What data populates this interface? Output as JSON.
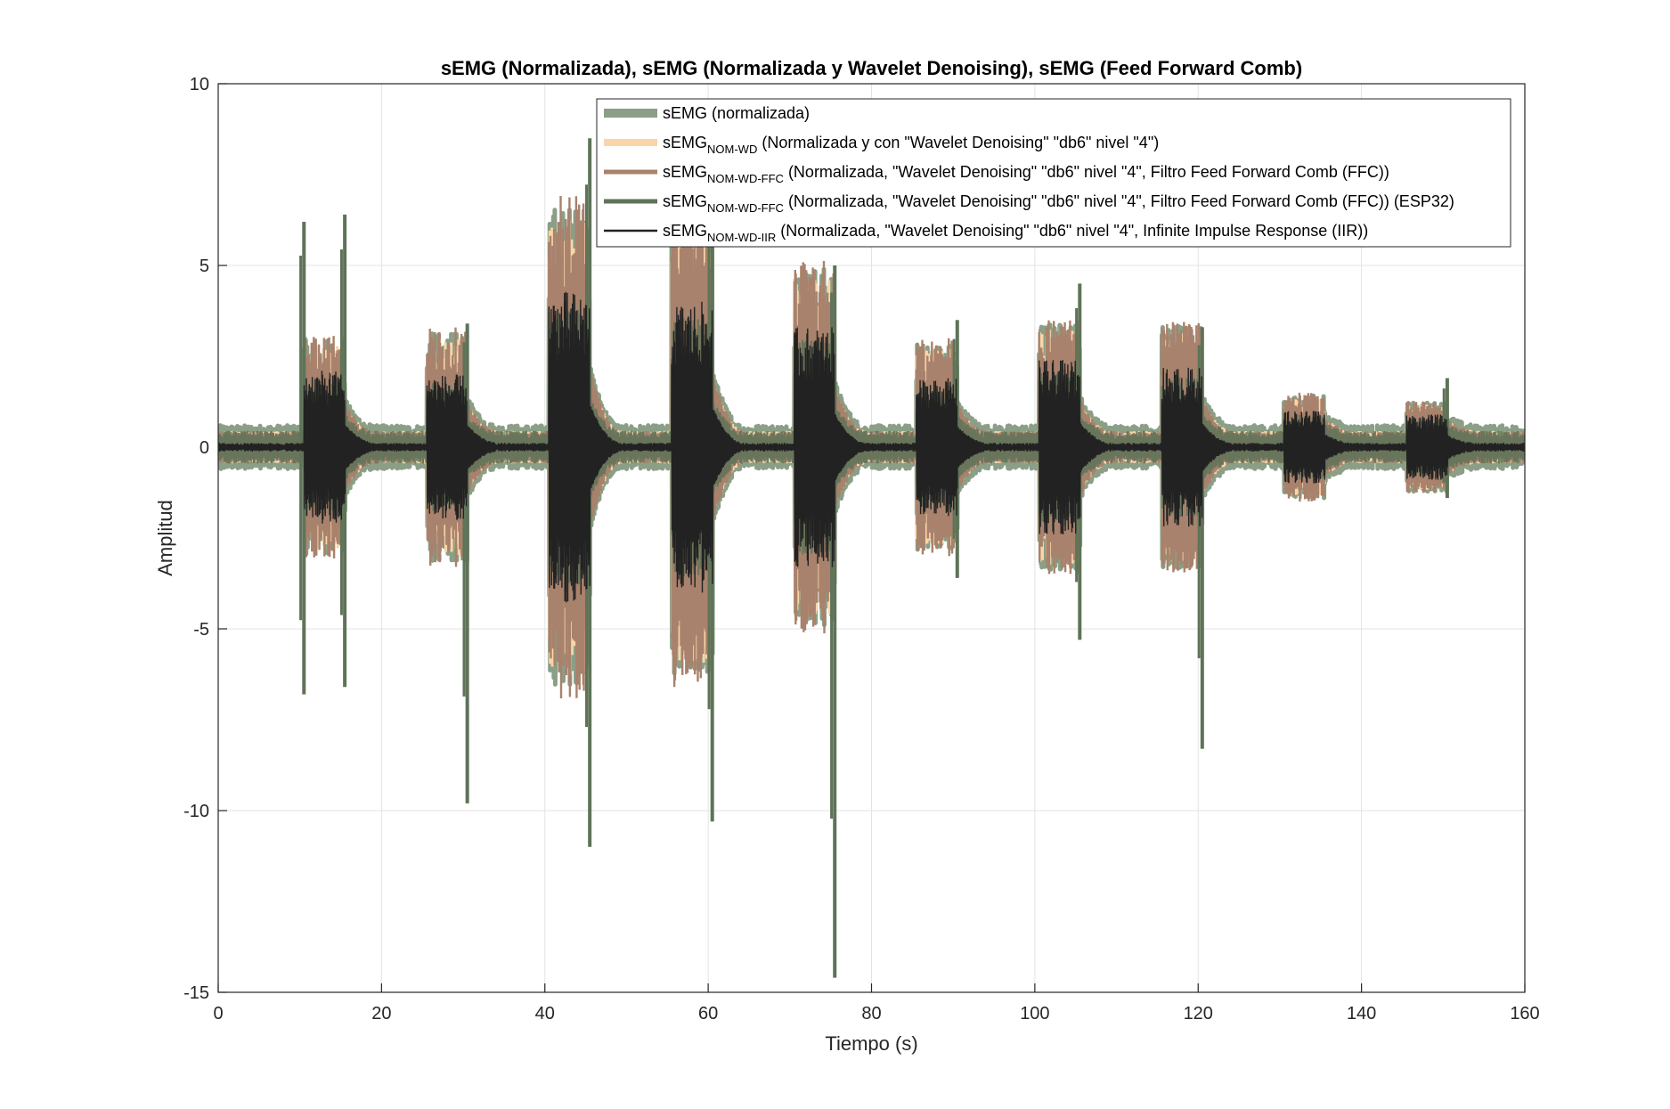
{
  "chart_data": {
    "type": "line",
    "title": "sEMG (Normalizada), sEMG (Normalizada y Wavelet Denoising), sEMG (Feed Forward Comb)",
    "xlabel": "Tiempo (s)",
    "ylabel": "Amplitud",
    "xlim": [
      0,
      160
    ],
    "ylim": [
      -15,
      10
    ],
    "xticks": [
      0,
      20,
      40,
      60,
      80,
      100,
      120,
      140,
      160
    ],
    "yticks": [
      10,
      5,
      0,
      -5,
      -10,
      -15
    ],
    "grid": true,
    "legend_position": "top-right",
    "colors": {
      "normalizada": "#8a9f86",
      "nom_wd": "#f9d5a7",
      "nom_wd_ffc": "#a8826c",
      "nom_wd_ffc_esp32": "#5e7358",
      "nom_wd_iir": "#222222"
    },
    "legend": [
      {
        "key": "normalizada",
        "main": "sEMG",
        "sub": "",
        "rest": " (normalizada)"
      },
      {
        "key": "nom_wd",
        "main": "sEMG",
        "sub": "NOM-WD",
        "rest": " (Normalizada y con \"Wavelet Denoising\" \"db6\" nivel \"4\")"
      },
      {
        "key": "nom_wd_ffc",
        "main": "sEMG",
        "sub": "NOM-WD-FFC",
        "rest": " (Normalizada, \"Wavelet Denoising\" \"db6\" nivel \"4\", Filtro Feed Forward Comb (FFC))"
      },
      {
        "key": "nom_wd_ffc_esp32",
        "main": "sEMG",
        "sub": "NOM-WD-FFC",
        "rest": " (Normalizada, \"Wavelet Denoising\" \"db6\" nivel \"4\", Filtro Feed Forward Comb (FFC)) (ESP32)"
      },
      {
        "key": "nom_wd_iir",
        "main": "sEMG",
        "sub": "NOM-WD-IIR",
        "rest": " (Normalizada, \"Wavelet Denoising\" \"db6\" nivel \"4\", Infinite Impulse Response (IIR))"
      }
    ],
    "baseline_noise": {
      "normalizada": 0.6,
      "nom_wd": 0.45,
      "nom_wd_ffc": 0.45,
      "nom_wd_iir": 0.12
    },
    "bursts": [
      {
        "start": 10.5,
        "end": 15.5,
        "ffc_amp": 3.1,
        "iir_amp": 2.1
      },
      {
        "start": 25.5,
        "end": 30.5,
        "ffc_amp": 3.3,
        "iir_amp": 2.0
      },
      {
        "start": 40.5,
        "end": 45.5,
        "ffc_amp": 7.0,
        "iir_amp": 4.3
      },
      {
        "start": 55.5,
        "end": 60.5,
        "ffc_amp": 6.6,
        "iir_amp": 4.0
      },
      {
        "start": 70.5,
        "end": 75.5,
        "ffc_amp": 5.2,
        "iir_amp": 3.3
      },
      {
        "start": 85.5,
        "end": 90.5,
        "ffc_amp": 3.0,
        "iir_amp": 1.9
      },
      {
        "start": 100.5,
        "end": 105.5,
        "ffc_amp": 3.6,
        "iir_amp": 2.4
      },
      {
        "start": 115.5,
        "end": 120.5,
        "ffc_amp": 3.5,
        "iir_amp": 2.2
      },
      {
        "start": 130.5,
        "end": 135.5,
        "ffc_amp": 1.5,
        "iir_amp": 1.0
      },
      {
        "start": 145.5,
        "end": 150.5,
        "ffc_amp": 1.3,
        "iir_amp": 0.9
      }
    ],
    "esp32_spikes": [
      {
        "x": 10.5,
        "ymin": -6.8,
        "ymax": 6.2
      },
      {
        "x": 15.5,
        "ymin": -6.6,
        "ymax": 6.4
      },
      {
        "x": 30.5,
        "ymin": -9.8,
        "ymax": 3.4
      },
      {
        "x": 45.5,
        "ymin": -11.0,
        "ymax": 8.5
      },
      {
        "x": 60.5,
        "ymin": -10.3,
        "ymax": 7.0
      },
      {
        "x": 75.5,
        "ymin": -14.6,
        "ymax": 5.0
      },
      {
        "x": 90.5,
        "ymin": -3.6,
        "ymax": 3.5
      },
      {
        "x": 105.5,
        "ymin": -5.3,
        "ymax": 4.5
      },
      {
        "x": 120.5,
        "ymin": -8.3,
        "ymax": 3.3
      },
      {
        "x": 150.5,
        "ymin": -1.4,
        "ymax": 1.9
      }
    ]
  }
}
